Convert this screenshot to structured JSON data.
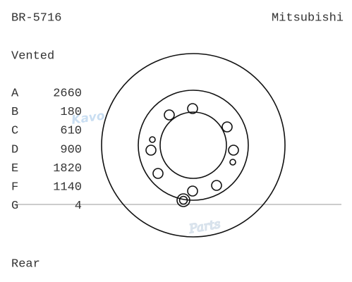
{
  "header": {
    "part_number": "BR-5716",
    "brand": "Mitsubishi"
  },
  "watermark": {
    "brand": "Kavo",
    "sub": "Parts"
  },
  "disc_type": "Vented",
  "specs": [
    {
      "label": "A",
      "value": 2660
    },
    {
      "label": "B",
      "value": 180
    },
    {
      "label": "C",
      "value": 610
    },
    {
      "label": "D",
      "value": 900
    },
    {
      "label": "E",
      "value": 1820
    },
    {
      "label": "F",
      "value": 1140
    },
    {
      "label": "G",
      "value": 4
    }
  ],
  "position": "Rear"
}
